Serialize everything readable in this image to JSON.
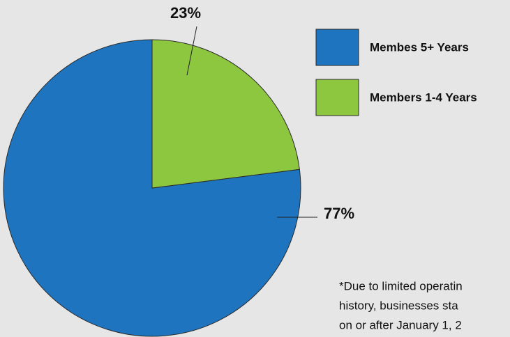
{
  "chart_data": {
    "type": "pie",
    "categories": [
      "Membes 5+ Years",
      "Members 1-4 Years"
    ],
    "values": [
      77,
      23
    ],
    "value_labels": [
      "77%",
      "23%"
    ],
    "colors": [
      "#1f74bf",
      "#8dc63f"
    ],
    "annotations": [
      "*Due to limited operatin",
      "history, businesses sta",
      "on or after January 1, 2"
    ]
  }
}
